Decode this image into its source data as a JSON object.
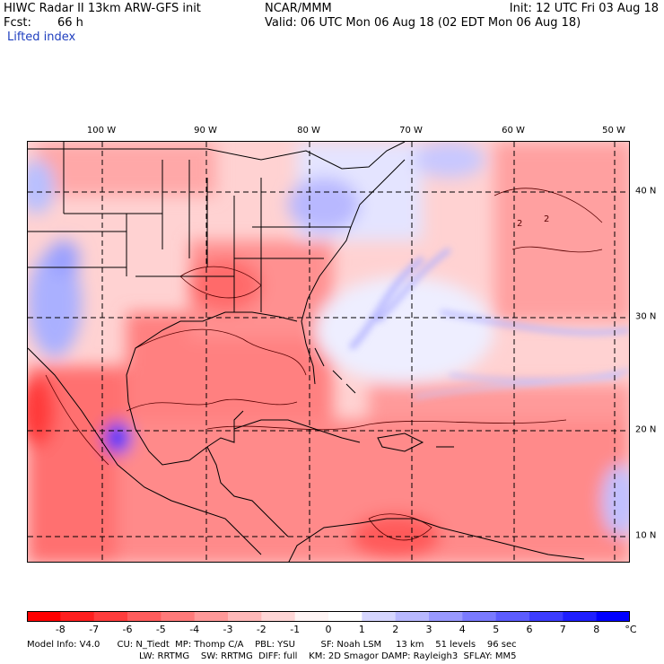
{
  "header": {
    "title": "HIWC Radar II 13km ARW-GFS init",
    "org": "NCAR/MMM",
    "init": "Init: 12 UTC Fri 03 Aug 18",
    "fcst_label": "Fcst:",
    "fcst_value": "66 h",
    "valid": "Valid: 06 UTC Mon 06 Aug 18 (02 EDT Mon 06 Aug 18)",
    "field": "Lifted index"
  },
  "map": {
    "lon_labels": [
      "100 W",
      "90 W",
      "80 W",
      "70 W",
      "60 W",
      "50 W"
    ],
    "lat_labels": [
      "40 N",
      "30 N",
      "20 N",
      "10 N"
    ],
    "contour_labels": [
      "2",
      "2"
    ]
  },
  "colorbar": {
    "labels": [
      "-8",
      "-7",
      "-6",
      "-5",
      "-4",
      "-3",
      "-2",
      "-1",
      "0",
      "1",
      "2",
      "3",
      "4",
      "5",
      "6",
      "7",
      "8"
    ],
    "unit": "°C",
    "colors": [
      "#ff0000",
      "#ff1f1f",
      "#ff3d3d",
      "#ff5c5c",
      "#ff7a7a",
      "#ff9999",
      "#ffb8b8",
      "#ffd6d6",
      "#fff5f5",
      "#ffffff",
      "#d6d6ff",
      "#b8b8ff",
      "#9999ff",
      "#7a7aff",
      "#5c5cff",
      "#3d3dff",
      "#1f1fff",
      "#0000ff"
    ]
  },
  "footer": {
    "line1": "Model Info: V4.0      CU: N_Tiedt  MP: Thomp C/A    PBL: YSU         SF: Noah LSM     13 km    51 levels    96 sec",
    "line2": "LW: RRTMG    SW: RRTMG  DIFF: full    KM: 2D Smagor DAMP: Rayleigh3  SFLAY: MM5"
  }
}
